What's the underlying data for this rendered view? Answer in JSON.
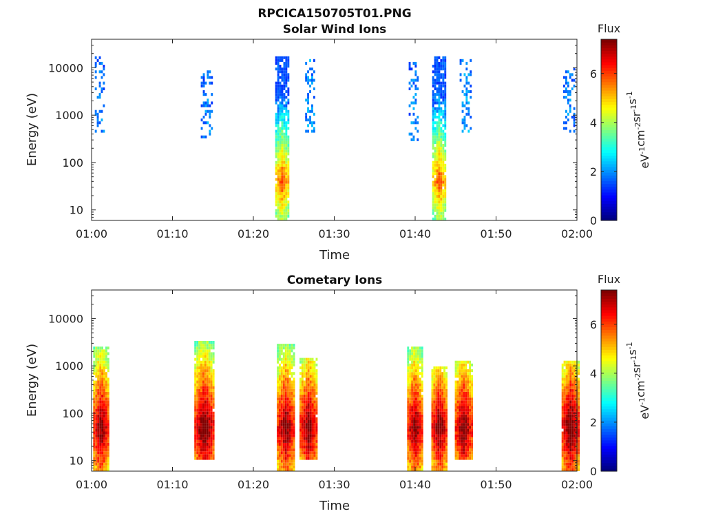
{
  "figure_title": "RPCICA150705T01.PNG",
  "colorbar": {
    "label": "Flux",
    "unit_parts": [
      "eV",
      "-1",
      "cm",
      "-2",
      "sr",
      "-1",
      "s",
      "-1"
    ],
    "ticks": [
      0,
      2,
      4,
      6
    ],
    "range": [
      0,
      7.4
    ],
    "colormap": "jet"
  },
  "chart_data": [
    {
      "type": "heatmap",
      "title": "Solar Wind Ions",
      "xlabel": "Time",
      "ylabel": "Energy (eV)",
      "x_ticks": [
        "01:00",
        "01:10",
        "01:20",
        "01:30",
        "01:40",
        "01:50",
        "02:00"
      ],
      "xlim_min": [
        0,
        60
      ],
      "y_ticks": [
        10,
        100,
        1000,
        10000
      ],
      "ylim": [
        6,
        40000
      ],
      "y_scale": "log",
      "z_label": "Flux",
      "z_range": [
        0,
        7.4
      ],
      "bursts": [
        {
          "t_min": 1.0,
          "width_min": 1.2,
          "energy_lo": 400,
          "energy_hi": 18000,
          "flux_peak": 2.0,
          "density": 0.35
        },
        {
          "t_min": 14.2,
          "width_min": 1.4,
          "energy_lo": 300,
          "energy_hi": 10000,
          "flux_peak": 2.0,
          "density": 0.3
        },
        {
          "t_min": 23.6,
          "width_min": 1.8,
          "energy_lo": 6,
          "energy_hi": 18000,
          "flux_peak": 5.5,
          "density": 0.85
        },
        {
          "t_min": 27.0,
          "width_min": 1.2,
          "energy_lo": 400,
          "energy_hi": 16000,
          "flux_peak": 2.2,
          "density": 0.35
        },
        {
          "t_min": 39.8,
          "width_min": 1.2,
          "energy_lo": 300,
          "energy_hi": 14000,
          "flux_peak": 2.0,
          "density": 0.3
        },
        {
          "t_min": 43.0,
          "width_min": 1.8,
          "energy_lo": 6,
          "energy_hi": 18000,
          "flux_peak": 5.5,
          "density": 0.85
        },
        {
          "t_min": 46.2,
          "width_min": 1.4,
          "energy_lo": 400,
          "energy_hi": 16000,
          "flux_peak": 2.2,
          "density": 0.35
        },
        {
          "t_min": 59.0,
          "width_min": 1.4,
          "energy_lo": 400,
          "energy_hi": 10000,
          "flux_peak": 2.0,
          "density": 0.35
        }
      ]
    },
    {
      "type": "heatmap",
      "title": "Cometary Ions",
      "xlabel": "Time",
      "ylabel": "Energy (eV)",
      "x_ticks": [
        "01:00",
        "01:10",
        "01:20",
        "01:30",
        "01:40",
        "01:50",
        "02:00"
      ],
      "xlim_min": [
        0,
        60
      ],
      "y_ticks": [
        10,
        100,
        1000,
        10000
      ],
      "ylim": [
        6,
        40000
      ],
      "y_scale": "log",
      "z_label": "Flux",
      "z_range": [
        0,
        7.4
      ],
      "bursts": [
        {
          "t_min": 1.2,
          "width_min": 2.0,
          "energy_lo": 6,
          "energy_hi": 2500,
          "flux_peak": 7.0,
          "density": 0.95
        },
        {
          "t_min": 14.0,
          "width_min": 2.6,
          "energy_lo": 10,
          "energy_hi": 3500,
          "flux_peak": 7.2,
          "density": 0.95
        },
        {
          "t_min": 24.0,
          "width_min": 2.2,
          "energy_lo": 6,
          "energy_hi": 3000,
          "flux_peak": 7.0,
          "density": 0.95
        },
        {
          "t_min": 26.8,
          "width_min": 2.2,
          "energy_lo": 10,
          "energy_hi": 1500,
          "flux_peak": 7.0,
          "density": 0.95
        },
        {
          "t_min": 40.0,
          "width_min": 2.0,
          "energy_lo": 6,
          "energy_hi": 2500,
          "flux_peak": 7.0,
          "density": 0.95
        },
        {
          "t_min": 43.0,
          "width_min": 2.0,
          "energy_lo": 6,
          "energy_hi": 1000,
          "flux_peak": 7.0,
          "density": 0.95
        },
        {
          "t_min": 46.0,
          "width_min": 2.2,
          "energy_lo": 10,
          "energy_hi": 1200,
          "flux_peak": 7.0,
          "density": 0.95
        },
        {
          "t_min": 59.2,
          "width_min": 2.2,
          "energy_lo": 6,
          "energy_hi": 1300,
          "flux_peak": 7.2,
          "density": 0.95
        }
      ]
    }
  ]
}
